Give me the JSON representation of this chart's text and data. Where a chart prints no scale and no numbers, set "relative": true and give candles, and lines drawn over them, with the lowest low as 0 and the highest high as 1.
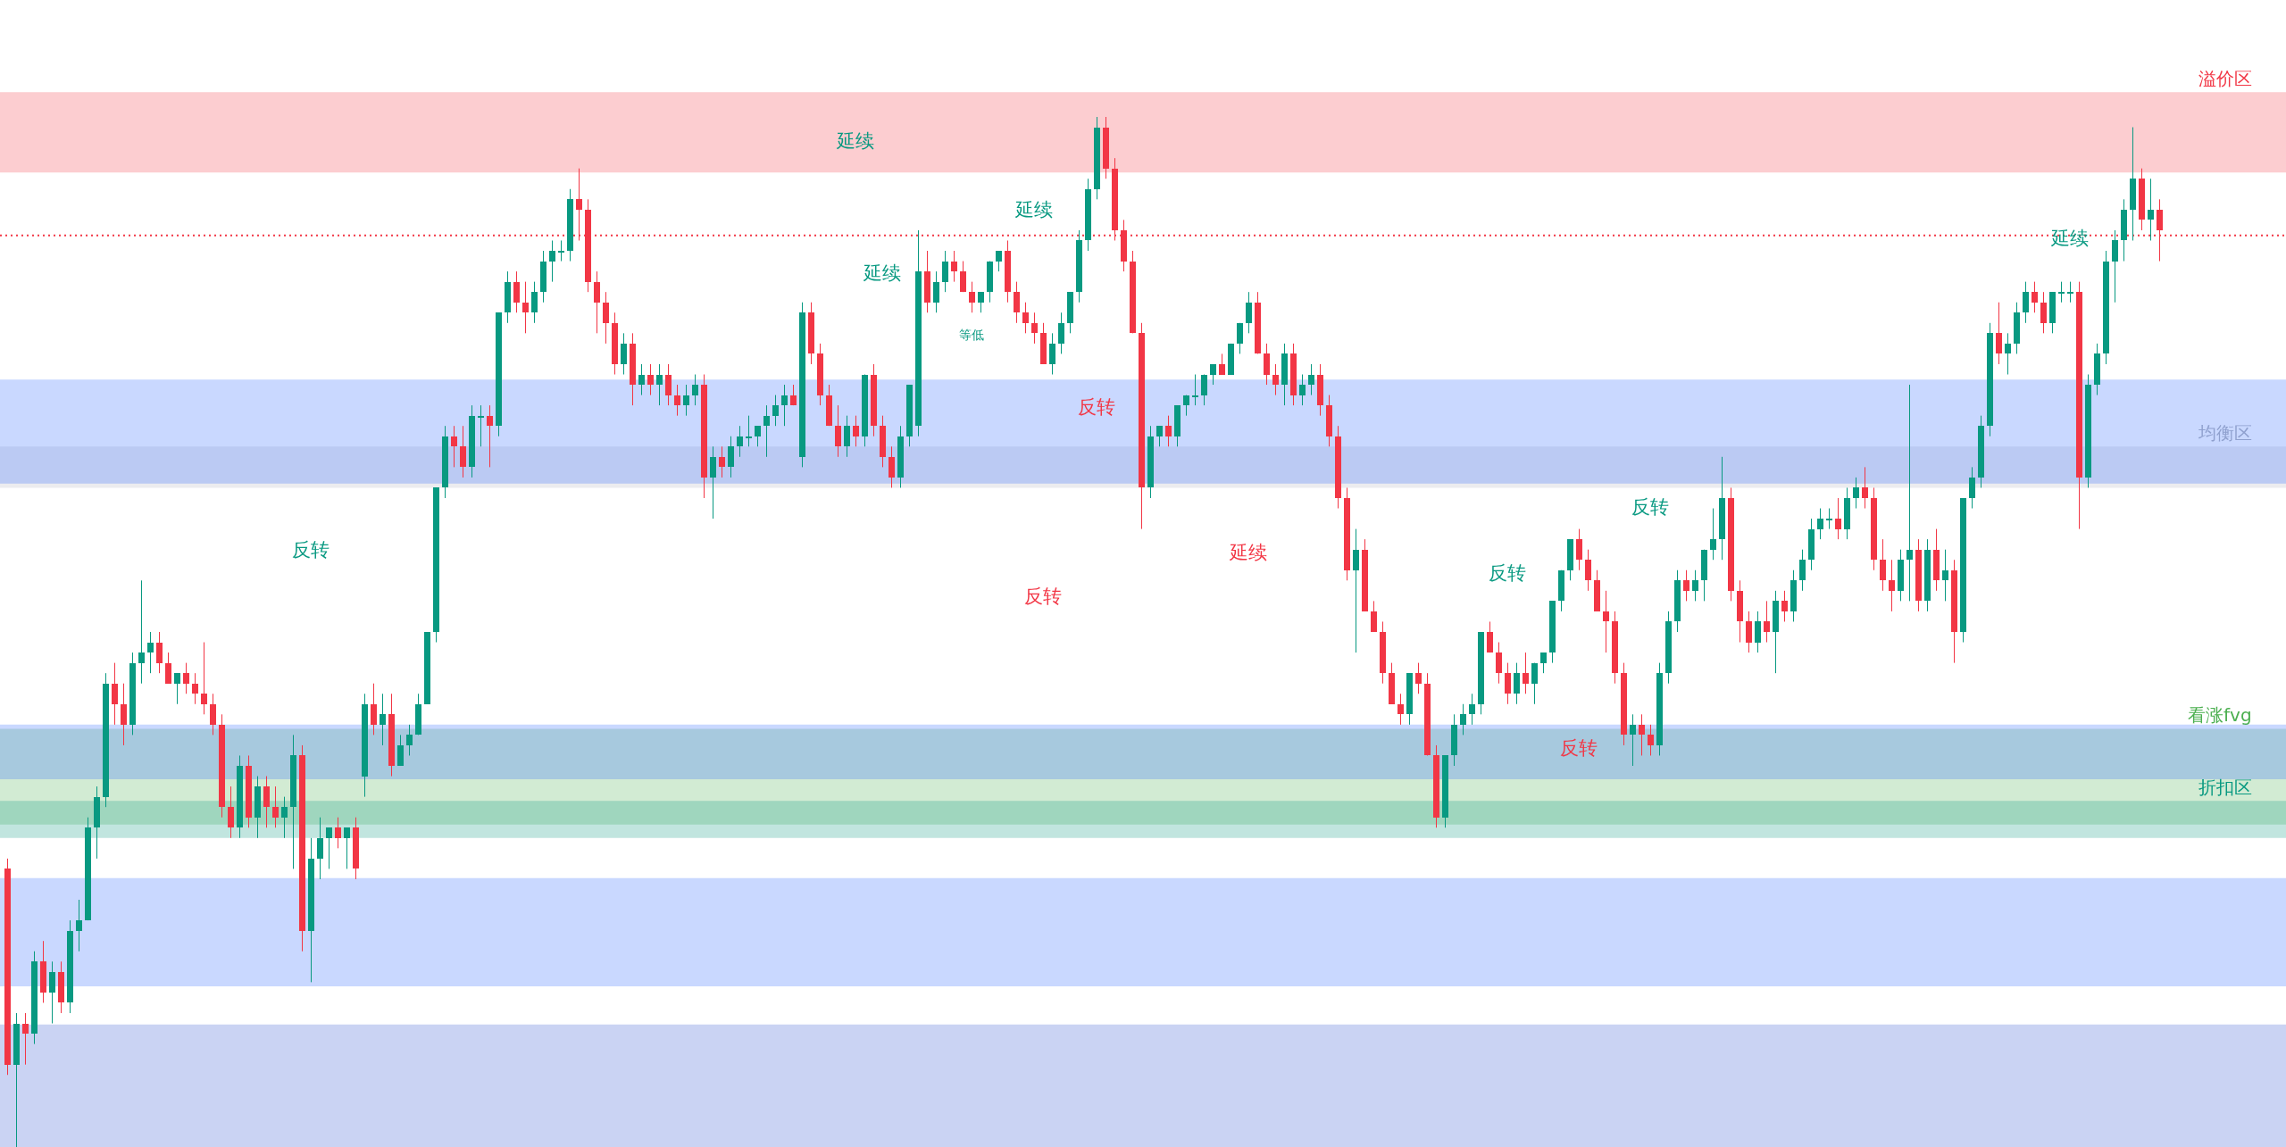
{
  "chart_data": {
    "type": "candlestick",
    "relative": true,
    "categories": [
      null,
      null,
      null,
      null,
      null,
      null,
      null,
      null,
      null,
      null,
      null,
      null,
      null,
      null,
      null,
      null,
      null,
      null,
      null,
      null,
      null,
      null,
      null,
      null,
      null,
      null,
      null,
      null,
      null,
      null,
      null,
      null,
      null,
      null,
      null,
      null,
      null,
      null,
      null,
      null,
      null,
      null,
      null,
      null,
      null,
      null,
      null,
      null,
      null,
      null,
      null,
      null,
      null,
      null,
      null,
      null,
      null,
      null,
      null,
      null,
      null,
      null,
      null,
      null,
      null,
      null,
      null,
      null,
      null,
      null,
      null,
      null,
      null,
      null,
      null,
      null,
      null,
      null,
      null,
      null,
      null,
      null,
      null,
      null,
      null,
      null,
      null,
      null,
      null,
      null,
      null,
      null,
      null,
      null,
      null,
      null,
      null,
      null,
      null,
      null,
      null,
      null,
      null,
      null,
      null,
      null,
      null,
      null,
      null,
      null,
      null,
      null,
      null,
      null,
      null,
      null,
      null,
      null,
      null,
      null,
      null,
      null,
      null,
      null,
      null,
      null,
      null,
      null,
      null,
      null,
      null,
      null,
      null,
      null,
      null,
      null,
      null,
      null,
      null,
      null,
      null,
      null,
      null,
      null,
      null,
      null,
      null,
      null,
      null,
      null,
      null,
      null,
      null,
      null,
      null,
      null,
      null,
      null,
      null,
      null,
      null,
      null,
      null,
      null,
      null,
      null,
      null,
      null,
      null,
      null,
      null,
      null,
      null,
      null,
      null,
      null,
      null,
      null,
      null,
      null,
      null,
      null,
      null,
      null,
      null,
      null,
      null,
      null,
      null,
      null,
      null,
      null,
      null,
      null,
      null,
      null,
      null,
      null,
      null,
      null,
      null,
      null,
      null,
      null,
      null,
      null,
      null,
      null,
      null,
      null,
      null,
      null,
      null,
      null,
      null,
      null,
      null,
      null,
      null,
      null,
      null,
      null,
      null,
      null,
      null,
      null,
      null,
      null,
      null,
      null,
      null,
      null,
      null,
      null,
      null,
      null,
      null,
      null,
      null,
      null,
      null,
      null
    ],
    "ohlc": [
      [
        0.27,
        0.28,
        0.07,
        0.08
      ],
      [
        0.08,
        0.13,
        0.0,
        0.12
      ],
      [
        0.12,
        0.13,
        0.08,
        0.11
      ],
      [
        0.11,
        0.19,
        0.1,
        0.18
      ],
      [
        0.18,
        0.2,
        0.14,
        0.15
      ],
      [
        0.15,
        0.18,
        0.12,
        0.17
      ],
      [
        0.17,
        0.18,
        0.13,
        0.14
      ],
      [
        0.14,
        0.22,
        0.13,
        0.21
      ],
      [
        0.21,
        0.24,
        0.19,
        0.22
      ],
      [
        0.22,
        0.32,
        0.22,
        0.31
      ],
      [
        0.31,
        0.35,
        0.28,
        0.34
      ],
      [
        0.34,
        0.46,
        0.33,
        0.45
      ],
      [
        0.45,
        0.47,
        0.41,
        0.43
      ],
      [
        0.43,
        0.45,
        0.39,
        0.41
      ],
      [
        0.41,
        0.48,
        0.4,
        0.47
      ],
      [
        0.47,
        0.55,
        0.45,
        0.48
      ],
      [
        0.48,
        0.5,
        0.46,
        0.49
      ],
      [
        0.49,
        0.5,
        0.46,
        0.47
      ],
      [
        0.47,
        0.48,
        0.45,
        0.45
      ],
      [
        0.45,
        0.46,
        0.43,
        0.46
      ],
      [
        0.46,
        0.47,
        0.44,
        0.45
      ],
      [
        0.45,
        0.46,
        0.43,
        0.44
      ],
      [
        0.44,
        0.49,
        0.42,
        0.43
      ],
      [
        0.43,
        0.44,
        0.4,
        0.41
      ],
      [
        0.41,
        0.42,
        0.32,
        0.33
      ],
      [
        0.33,
        0.35,
        0.3,
        0.31
      ],
      [
        0.31,
        0.38,
        0.3,
        0.37
      ],
      [
        0.37,
        0.38,
        0.31,
        0.32
      ],
      [
        0.32,
        0.36,
        0.3,
        0.35
      ],
      [
        0.35,
        0.36,
        0.31,
        0.33
      ],
      [
        0.33,
        0.35,
        0.31,
        0.32
      ],
      [
        0.32,
        0.34,
        0.3,
        0.33
      ],
      [
        0.33,
        0.4,
        0.27,
        0.38
      ],
      [
        0.38,
        0.39,
        0.19,
        0.21
      ],
      [
        0.21,
        0.3,
        0.16,
        0.28
      ],
      [
        0.28,
        0.32,
        0.26,
        0.3
      ],
      [
        0.3,
        0.31,
        0.27,
        0.31
      ],
      [
        0.31,
        0.32,
        0.29,
        0.3
      ],
      [
        0.3,
        0.31,
        0.27,
        0.31
      ],
      [
        0.31,
        0.32,
        0.26,
        0.27
      ],
      [
        0.36,
        0.44,
        0.34,
        0.43
      ],
      [
        0.43,
        0.45,
        0.4,
        0.41
      ],
      [
        0.41,
        0.44,
        0.39,
        0.42
      ],
      [
        0.42,
        0.44,
        0.36,
        0.37
      ],
      [
        0.37,
        0.4,
        0.37,
        0.39
      ],
      [
        0.39,
        0.41,
        0.38,
        0.4
      ],
      [
        0.4,
        0.44,
        0.4,
        0.43
      ],
      [
        0.43,
        0.5,
        0.43,
        0.5
      ],
      [
        0.5,
        0.64,
        0.49,
        0.64
      ],
      [
        0.64,
        0.7,
        0.63,
        0.69
      ],
      [
        0.69,
        0.7,
        0.66,
        0.68
      ],
      [
        0.68,
        0.7,
        0.65,
        0.66
      ],
      [
        0.66,
        0.72,
        0.65,
        0.71
      ],
      [
        0.71,
        0.72,
        0.68,
        0.71
      ],
      [
        0.71,
        0.72,
        0.66,
        0.7
      ],
      [
        0.7,
        0.81,
        0.69,
        0.81
      ],
      [
        0.81,
        0.85,
        0.8,
        0.84
      ],
      [
        0.84,
        0.85,
        0.81,
        0.82
      ],
      [
        0.82,
        0.84,
        0.79,
        0.81
      ],
      [
        0.81,
        0.84,
        0.8,
        0.83
      ],
      [
        0.83,
        0.87,
        0.82,
        0.86
      ],
      [
        0.86,
        0.88,
        0.84,
        0.87
      ],
      [
        0.87,
        0.88,
        0.86,
        0.87
      ],
      [
        0.87,
        0.93,
        0.86,
        0.92
      ],
      [
        0.92,
        0.95,
        0.88,
        0.91
      ],
      [
        0.91,
        0.92,
        0.83,
        0.84
      ],
      [
        0.84,
        0.85,
        0.79,
        0.82
      ],
      [
        0.82,
        0.83,
        0.78,
        0.8
      ],
      [
        0.8,
        0.81,
        0.75,
        0.76
      ],
      [
        0.76,
        0.79,
        0.75,
        0.78
      ],
      [
        0.78,
        0.79,
        0.72,
        0.74
      ],
      [
        0.74,
        0.76,
        0.73,
        0.75
      ],
      [
        0.75,
        0.76,
        0.73,
        0.74
      ],
      [
        0.74,
        0.76,
        0.72,
        0.75
      ],
      [
        0.75,
        0.76,
        0.72,
        0.73
      ],
      [
        0.73,
        0.74,
        0.71,
        0.72
      ],
      [
        0.72,
        0.74,
        0.71,
        0.73
      ],
      [
        0.73,
        0.75,
        0.72,
        0.74
      ],
      [
        0.74,
        0.75,
        0.63,
        0.65
      ],
      [
        0.65,
        0.68,
        0.61,
        0.67
      ],
      [
        0.67,
        0.68,
        0.65,
        0.66
      ],
      [
        0.66,
        0.69,
        0.65,
        0.68
      ],
      [
        0.68,
        0.7,
        0.67,
        0.69
      ],
      [
        0.69,
        0.71,
        0.68,
        0.69
      ],
      [
        0.69,
        0.7,
        0.68,
        0.7
      ],
      [
        0.7,
        0.72,
        0.67,
        0.71
      ],
      [
        0.71,
        0.73,
        0.7,
        0.72
      ],
      [
        0.72,
        0.74,
        0.7,
        0.73
      ],
      [
        0.73,
        0.74,
        0.72,
        0.72
      ],
      [
        0.67,
        0.82,
        0.66,
        0.81
      ],
      [
        0.81,
        0.82,
        0.76,
        0.77
      ],
      [
        0.77,
        0.78,
        0.72,
        0.73
      ],
      [
        0.73,
        0.74,
        0.7,
        0.7
      ],
      [
        0.7,
        0.72,
        0.67,
        0.68
      ],
      [
        0.68,
        0.71,
        0.67,
        0.7
      ],
      [
        0.7,
        0.71,
        0.68,
        0.69
      ],
      [
        0.69,
        0.75,
        0.68,
        0.75
      ],
      [
        0.75,
        0.76,
        0.69,
        0.7
      ],
      [
        0.7,
        0.71,
        0.66,
        0.67
      ],
      [
        0.67,
        0.68,
        0.64,
        0.65
      ],
      [
        0.65,
        0.7,
        0.64,
        0.69
      ],
      [
        0.69,
        0.74,
        0.68,
        0.74
      ],
      [
        0.7,
        0.89,
        0.69,
        0.85
      ],
      [
        0.85,
        0.87,
        0.81,
        0.82
      ],
      [
        0.82,
        0.85,
        0.81,
        0.84
      ],
      [
        0.84,
        0.87,
        0.83,
        0.86
      ],
      [
        0.86,
        0.87,
        0.84,
        0.85
      ],
      [
        0.85,
        0.86,
        0.83,
        0.83
      ],
      [
        0.83,
        0.84,
        0.81,
        0.82
      ],
      [
        0.82,
        0.83,
        0.81,
        0.83
      ],
      [
        0.83,
        0.86,
        0.82,
        0.86
      ],
      [
        0.86,
        0.87,
        0.85,
        0.87
      ],
      [
        0.87,
        0.88,
        0.82,
        0.83
      ],
      [
        0.83,
        0.84,
        0.8,
        0.81
      ],
      [
        0.81,
        0.82,
        0.79,
        0.8
      ],
      [
        0.8,
        0.81,
        0.78,
        0.79
      ],
      [
        0.79,
        0.8,
        0.76,
        0.76
      ],
      [
        0.76,
        0.79,
        0.75,
        0.78
      ],
      [
        0.78,
        0.81,
        0.77,
        0.8
      ],
      [
        0.8,
        0.83,
        0.79,
        0.83
      ],
      [
        0.83,
        0.89,
        0.82,
        0.88
      ],
      [
        0.88,
        0.94,
        0.87,
        0.93
      ],
      [
        0.93,
        1.0,
        0.92,
        0.99
      ],
      [
        0.99,
        1.0,
        0.94,
        0.95
      ],
      [
        0.95,
        0.96,
        0.88,
        0.89
      ],
      [
        0.89,
        0.9,
        0.85,
        0.86
      ],
      [
        0.86,
        0.87,
        0.79,
        0.79
      ],
      [
        0.79,
        0.8,
        0.6,
        0.64
      ],
      [
        0.64,
        0.7,
        0.63,
        0.69
      ],
      [
        0.69,
        0.7,
        0.68,
        0.7
      ],
      [
        0.7,
        0.71,
        0.68,
        0.69
      ],
      [
        0.69,
        0.72,
        0.68,
        0.72
      ],
      [
        0.72,
        0.73,
        0.71,
        0.73
      ],
      [
        0.73,
        0.75,
        0.72,
        0.73
      ],
      [
        0.73,
        0.75,
        0.72,
        0.75
      ],
      [
        0.75,
        0.76,
        0.74,
        0.76
      ],
      [
        0.76,
        0.77,
        0.75,
        0.75
      ],
      [
        0.75,
        0.78,
        0.75,
        0.78
      ],
      [
        0.78,
        0.8,
        0.77,
        0.8
      ],
      [
        0.8,
        0.83,
        0.79,
        0.82
      ],
      [
        0.82,
        0.83,
        0.77,
        0.77
      ],
      [
        0.77,
        0.78,
        0.74,
        0.75
      ],
      [
        0.75,
        0.76,
        0.73,
        0.74
      ],
      [
        0.74,
        0.78,
        0.72,
        0.77
      ],
      [
        0.77,
        0.78,
        0.72,
        0.73
      ],
      [
        0.73,
        0.75,
        0.72,
        0.74
      ],
      [
        0.74,
        0.76,
        0.73,
        0.75
      ],
      [
        0.75,
        0.76,
        0.71,
        0.72
      ],
      [
        0.72,
        0.73,
        0.68,
        0.69
      ],
      [
        0.69,
        0.7,
        0.62,
        0.63
      ],
      [
        0.63,
        0.64,
        0.55,
        0.56
      ],
      [
        0.56,
        0.6,
        0.48,
        0.58
      ],
      [
        0.58,
        0.59,
        0.52,
        0.52
      ],
      [
        0.52,
        0.53,
        0.5,
        0.5
      ],
      [
        0.5,
        0.51,
        0.45,
        0.46
      ],
      [
        0.46,
        0.47,
        0.43,
        0.43
      ],
      [
        0.43,
        0.44,
        0.41,
        0.42
      ],
      [
        0.42,
        0.46,
        0.41,
        0.46
      ],
      [
        0.46,
        0.47,
        0.44,
        0.45
      ],
      [
        0.45,
        0.46,
        0.38,
        0.38
      ],
      [
        0.38,
        0.39,
        0.31,
        0.32
      ],
      [
        0.32,
        0.38,
        0.31,
        0.38
      ],
      [
        0.38,
        0.42,
        0.37,
        0.41
      ],
      [
        0.41,
        0.43,
        0.4,
        0.42
      ],
      [
        0.42,
        0.44,
        0.41,
        0.43
      ],
      [
        0.43,
        0.5,
        0.42,
        0.5
      ],
      [
        0.5,
        0.51,
        0.48,
        0.48
      ],
      [
        0.48,
        0.49,
        0.45,
        0.46
      ],
      [
        0.46,
        0.47,
        0.43,
        0.44
      ],
      [
        0.44,
        0.47,
        0.43,
        0.46
      ],
      [
        0.46,
        0.48,
        0.44,
        0.45
      ],
      [
        0.45,
        0.47,
        0.43,
        0.47
      ],
      [
        0.47,
        0.48,
        0.46,
        0.48
      ],
      [
        0.48,
        0.53,
        0.47,
        0.53
      ],
      [
        0.53,
        0.56,
        0.52,
        0.56
      ],
      [
        0.56,
        0.59,
        0.55,
        0.59
      ],
      [
        0.59,
        0.6,
        0.56,
        0.57
      ],
      [
        0.57,
        0.58,
        0.54,
        0.55
      ],
      [
        0.55,
        0.56,
        0.52,
        0.52
      ],
      [
        0.52,
        0.54,
        0.48,
        0.51
      ],
      [
        0.51,
        0.52,
        0.45,
        0.46
      ],
      [
        0.46,
        0.47,
        0.39,
        0.4
      ],
      [
        0.4,
        0.42,
        0.37,
        0.41
      ],
      [
        0.41,
        0.42,
        0.38,
        0.4
      ],
      [
        0.4,
        0.41,
        0.38,
        0.39
      ],
      [
        0.39,
        0.47,
        0.38,
        0.46
      ],
      [
        0.46,
        0.52,
        0.45,
        0.51
      ],
      [
        0.51,
        0.56,
        0.5,
        0.55
      ],
      [
        0.55,
        0.56,
        0.53,
        0.54
      ],
      [
        0.54,
        0.56,
        0.53,
        0.55
      ],
      [
        0.55,
        0.58,
        0.53,
        0.58
      ],
      [
        0.58,
        0.62,
        0.57,
        0.59
      ],
      [
        0.59,
        0.67,
        0.57,
        0.63
      ],
      [
        0.63,
        0.64,
        0.53,
        0.54
      ],
      [
        0.54,
        0.55,
        0.49,
        0.51
      ],
      [
        0.51,
        0.52,
        0.48,
        0.49
      ],
      [
        0.49,
        0.52,
        0.48,
        0.51
      ],
      [
        0.51,
        0.53,
        0.49,
        0.5
      ],
      [
        0.5,
        0.54,
        0.46,
        0.53
      ],
      [
        0.53,
        0.54,
        0.51,
        0.52
      ],
      [
        0.52,
        0.56,
        0.51,
        0.55
      ],
      [
        0.55,
        0.58,
        0.54,
        0.57
      ],
      [
        0.57,
        0.61,
        0.56,
        0.6
      ],
      [
        0.6,
        0.62,
        0.59,
        0.61
      ],
      [
        0.61,
        0.62,
        0.6,
        0.61
      ],
      [
        0.61,
        0.63,
        0.59,
        0.6
      ],
      [
        0.6,
        0.64,
        0.59,
        0.63
      ],
      [
        0.63,
        0.65,
        0.62,
        0.64
      ],
      [
        0.64,
        0.66,
        0.62,
        0.63
      ],
      [
        0.63,
        0.64,
        0.56,
        0.57
      ],
      [
        0.57,
        0.59,
        0.54,
        0.55
      ],
      [
        0.55,
        0.57,
        0.52,
        0.54
      ],
      [
        0.54,
        0.58,
        0.53,
        0.57
      ],
      [
        0.57,
        0.74,
        0.53,
        0.58
      ],
      [
        0.58,
        0.59,
        0.52,
        0.53
      ],
      [
        0.53,
        0.59,
        0.52,
        0.58
      ],
      [
        0.58,
        0.6,
        0.54,
        0.55
      ],
      [
        0.55,
        0.58,
        0.53,
        0.56
      ],
      [
        0.56,
        0.57,
        0.47,
        0.5
      ],
      [
        0.5,
        0.63,
        0.49,
        0.63
      ],
      [
        0.63,
        0.66,
        0.62,
        0.65
      ],
      [
        0.65,
        0.71,
        0.64,
        0.7
      ],
      [
        0.7,
        0.8,
        0.69,
        0.79
      ],
      [
        0.79,
        0.82,
        0.76,
        0.77
      ],
      [
        0.77,
        0.79,
        0.75,
        0.78
      ],
      [
        0.78,
        0.82,
        0.77,
        0.81
      ],
      [
        0.81,
        0.84,
        0.8,
        0.83
      ],
      [
        0.83,
        0.84,
        0.81,
        0.82
      ],
      [
        0.82,
        0.83,
        0.79,
        0.8
      ],
      [
        0.8,
        0.83,
        0.79,
        0.83
      ],
      [
        0.83,
        0.84,
        0.82,
        0.83
      ],
      [
        0.83,
        0.84,
        0.82,
        0.83
      ],
      [
        0.83,
        0.84,
        0.6,
        0.65
      ],
      [
        0.65,
        0.75,
        0.64,
        0.74
      ],
      [
        0.74,
        0.78,
        0.73,
        0.77
      ],
      [
        0.77,
        0.87,
        0.76,
        0.86
      ],
      [
        0.86,
        0.89,
        0.82,
        0.88
      ],
      [
        0.88,
        0.92,
        0.86,
        0.91
      ],
      [
        0.91,
        0.99,
        0.88,
        0.94
      ],
      [
        0.94,
        0.95,
        0.89,
        0.9
      ],
      [
        0.9,
        0.94,
        0.88,
        0.91
      ],
      [
        0.91,
        0.92,
        0.86,
        0.89
      ]
    ],
    "bands": [
      {
        "axis": "y",
        "from": 0.946,
        "to": 1.024,
        "label": "溢价区",
        "color": "#f23645"
      },
      {
        "axis": "y",
        "from": 0.64,
        "to": 0.68,
        "label": "均衡区",
        "color": "#b2b5be"
      },
      {
        "axis": "y",
        "from": 0.313,
        "to": 0.406,
        "label": "看涨fvg",
        "color": "#4caf50"
      },
      {
        "axis": "y",
        "from": 0.3,
        "to": 0.336,
        "label": "折扣区",
        "color": "#089981"
      },
      {
        "axis": "y",
        "from": 0.644,
        "to": 0.745,
        "color": "#2962ff"
      },
      {
        "axis": "y",
        "from": 0.357,
        "to": 0.41,
        "color": "#2962ff"
      },
      {
        "axis": "y",
        "from": 0.156,
        "to": 0.261,
        "color": "#2962ff"
      },
      {
        "axis": "y",
        "from": 0.0,
        "to": 0.119,
        "color": "#2a4fd0"
      }
    ],
    "ref_lines": [
      {
        "axis": "y",
        "value": 0.885,
        "color": "#f23645",
        "line_style": "dotted"
      }
    ],
    "annotations": [
      "反转",
      "延续",
      "延续",
      "延续",
      "等低",
      "反转",
      "反转",
      "延续",
      "反转",
      "反转",
      "反转",
      "延续"
    ]
  }
}
